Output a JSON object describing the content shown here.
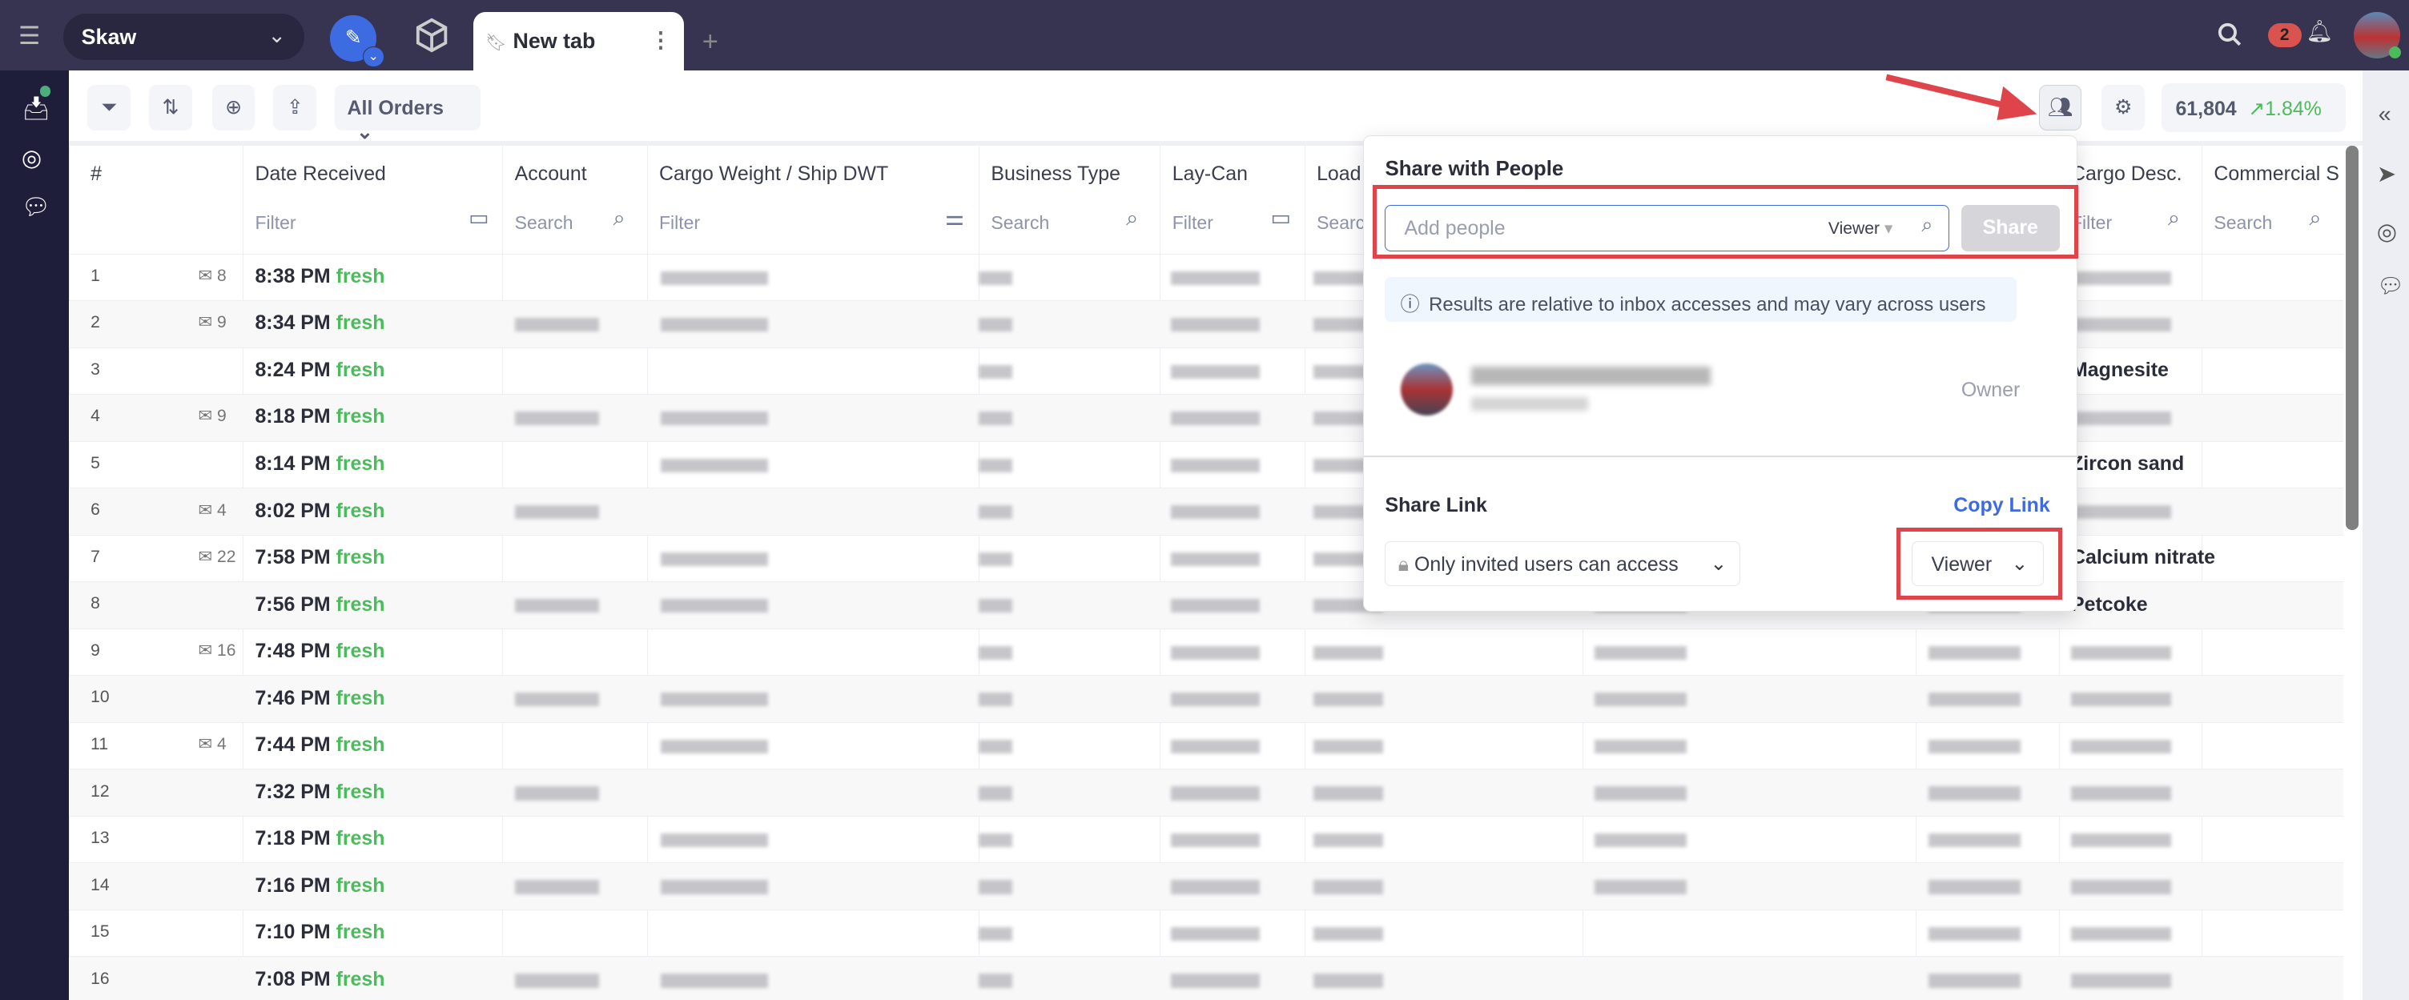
{
  "topbar": {
    "workspace": "Skaw",
    "tab_label": "New tab",
    "notification_count": "2",
    "colors": {
      "bar": "#363451",
      "accent": "#3d6be2",
      "badge": "#d9534f"
    }
  },
  "toolbar": {
    "view_select": "All Orders",
    "stats_count": "61,804",
    "stats_change": "1.84%"
  },
  "table": {
    "columns": [
      {
        "label": "#",
        "filter": ""
      },
      {
        "label": "Date Received",
        "filter": "Filter"
      },
      {
        "label": "Account",
        "filter": "Search"
      },
      {
        "label": "Cargo Weight / Ship DWT",
        "filter": "Filter"
      },
      {
        "label": "Business Type",
        "filter": "Search"
      },
      {
        "label": "Lay-Can",
        "filter": "Filter"
      },
      {
        "label": "Load",
        "filter": "Search"
      },
      {
        "label": "",
        "filter": ""
      },
      {
        "label": "",
        "filter": "Filter"
      },
      {
        "label": "Cargo Desc.",
        "filter": "Filter"
      },
      {
        "label": "Commercial S",
        "filter": "Search"
      }
    ],
    "fresh_label": "fresh",
    "rows": [
      {
        "n": "1",
        "mail": "8",
        "time": "8:38 PM",
        "desc": ""
      },
      {
        "n": "2",
        "mail": "9",
        "time": "8:34 PM",
        "desc": ""
      },
      {
        "n": "3",
        "mail": "",
        "time": "8:24 PM",
        "desc": "Magnesite"
      },
      {
        "n": "4",
        "mail": "9",
        "time": "8:18 PM",
        "desc": ""
      },
      {
        "n": "5",
        "mail": "",
        "time": "8:14 PM",
        "desc": "Zircon sand"
      },
      {
        "n": "6",
        "mail": "4",
        "time": "8:02 PM",
        "desc": ""
      },
      {
        "n": "7",
        "mail": "22",
        "time": "7:58 PM",
        "desc": "Calcium nitrate"
      },
      {
        "n": "8",
        "mail": "",
        "time": "7:56 PM",
        "desc": "Petcoke"
      },
      {
        "n": "9",
        "mail": "16",
        "time": "7:48 PM",
        "desc": ""
      },
      {
        "n": "10",
        "mail": "",
        "time": "7:46 PM",
        "desc": ""
      },
      {
        "n": "11",
        "mail": "4",
        "time": "7:44 PM",
        "desc": ""
      },
      {
        "n": "12",
        "mail": "",
        "time": "7:32 PM",
        "desc": ""
      },
      {
        "n": "13",
        "mail": "",
        "time": "7:18 PM",
        "desc": ""
      },
      {
        "n": "14",
        "mail": "",
        "time": "7:16 PM",
        "desc": ""
      },
      {
        "n": "15",
        "mail": "",
        "time": "7:10 PM",
        "desc": ""
      },
      {
        "n": "16",
        "mail": "",
        "time": "7:08 PM",
        "desc": ""
      }
    ]
  },
  "share_popover": {
    "title": "Share with People",
    "input_placeholder": "Add people",
    "role": "Viewer",
    "share_button": "Share",
    "info": "Results are relative to inbox accesses and may vary across users",
    "owner_role": "Owner",
    "link_title": "Share Link",
    "copy_link": "Copy Link",
    "access": "Only invited users can access",
    "link_role": "Viewer"
  }
}
